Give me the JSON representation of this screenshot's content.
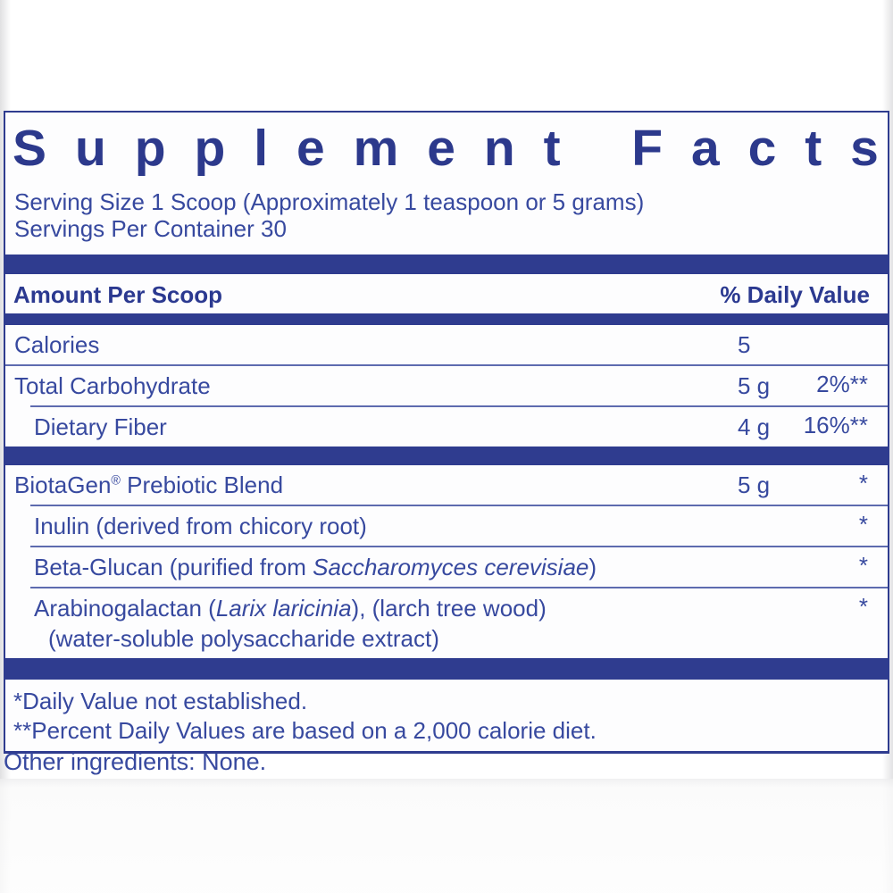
{
  "colors": {
    "navy_bar": "#2f3c8f",
    "title_text": "#2c398c",
    "body_text": "#37499f",
    "bold_text": "#2b3990",
    "divider_line": "#4c5ba6"
  },
  "label": {
    "title": "Supplement Facts",
    "serving_size": "Serving Size 1 Scoop (Approximately 1 teaspoon or 5 grams)",
    "servings_per_container": "Servings Per Container 30",
    "header": {
      "amount": "Amount Per Scoop",
      "daily_value": "% Daily Value"
    },
    "rows": [
      {
        "divider": "",
        "indent": false,
        "parts": [
          {
            "text": "Calories"
          }
        ],
        "amount": "5",
        "dv": ""
      },
      {
        "divider": "full",
        "indent": false,
        "parts": [
          {
            "text": "Total Carbohydrate"
          }
        ],
        "amount": "5 g",
        "dv": "2%**"
      },
      {
        "divider": "indent",
        "indent": true,
        "parts": [
          {
            "text": "Dietary Fiber"
          }
        ],
        "amount": "4 g",
        "dv": "16%**"
      },
      {
        "divider": "bar",
        "indent": false,
        "parts": [
          {
            "text": "BiotaGen"
          },
          {
            "text": "®",
            "sup": true
          },
          {
            "text": " Prebiotic Blend"
          }
        ],
        "amount": "5 g",
        "dv": "*"
      },
      {
        "divider": "indent",
        "indent": true,
        "parts": [
          {
            "text": "Inulin (derived from chicory root)"
          }
        ],
        "amount": "",
        "dv": "*"
      },
      {
        "divider": "indent",
        "indent": true,
        "parts": [
          {
            "text": "Beta-Glucan (purified from "
          },
          {
            "text": "Saccharomyces cerevisiae",
            "italic": true
          },
          {
            "text": ")"
          }
        ],
        "amount": "",
        "dv": "*"
      },
      {
        "divider": "indent",
        "indent": true,
        "parts": [
          {
            "text": "Arabinogalactan ("
          },
          {
            "text": "Larix laricinia",
            "italic": true
          },
          {
            "text": "), (larch tree wood)"
          }
        ],
        "line2": "(water-soluble polysaccharide extract)",
        "amount": "",
        "dv": "*"
      }
    ],
    "footnote_1": "*Daily Value not established.",
    "footnote_2": "**Percent Daily Values are based on a 2,000 calorie diet.",
    "other_ingredients": "Other ingredients: None."
  }
}
